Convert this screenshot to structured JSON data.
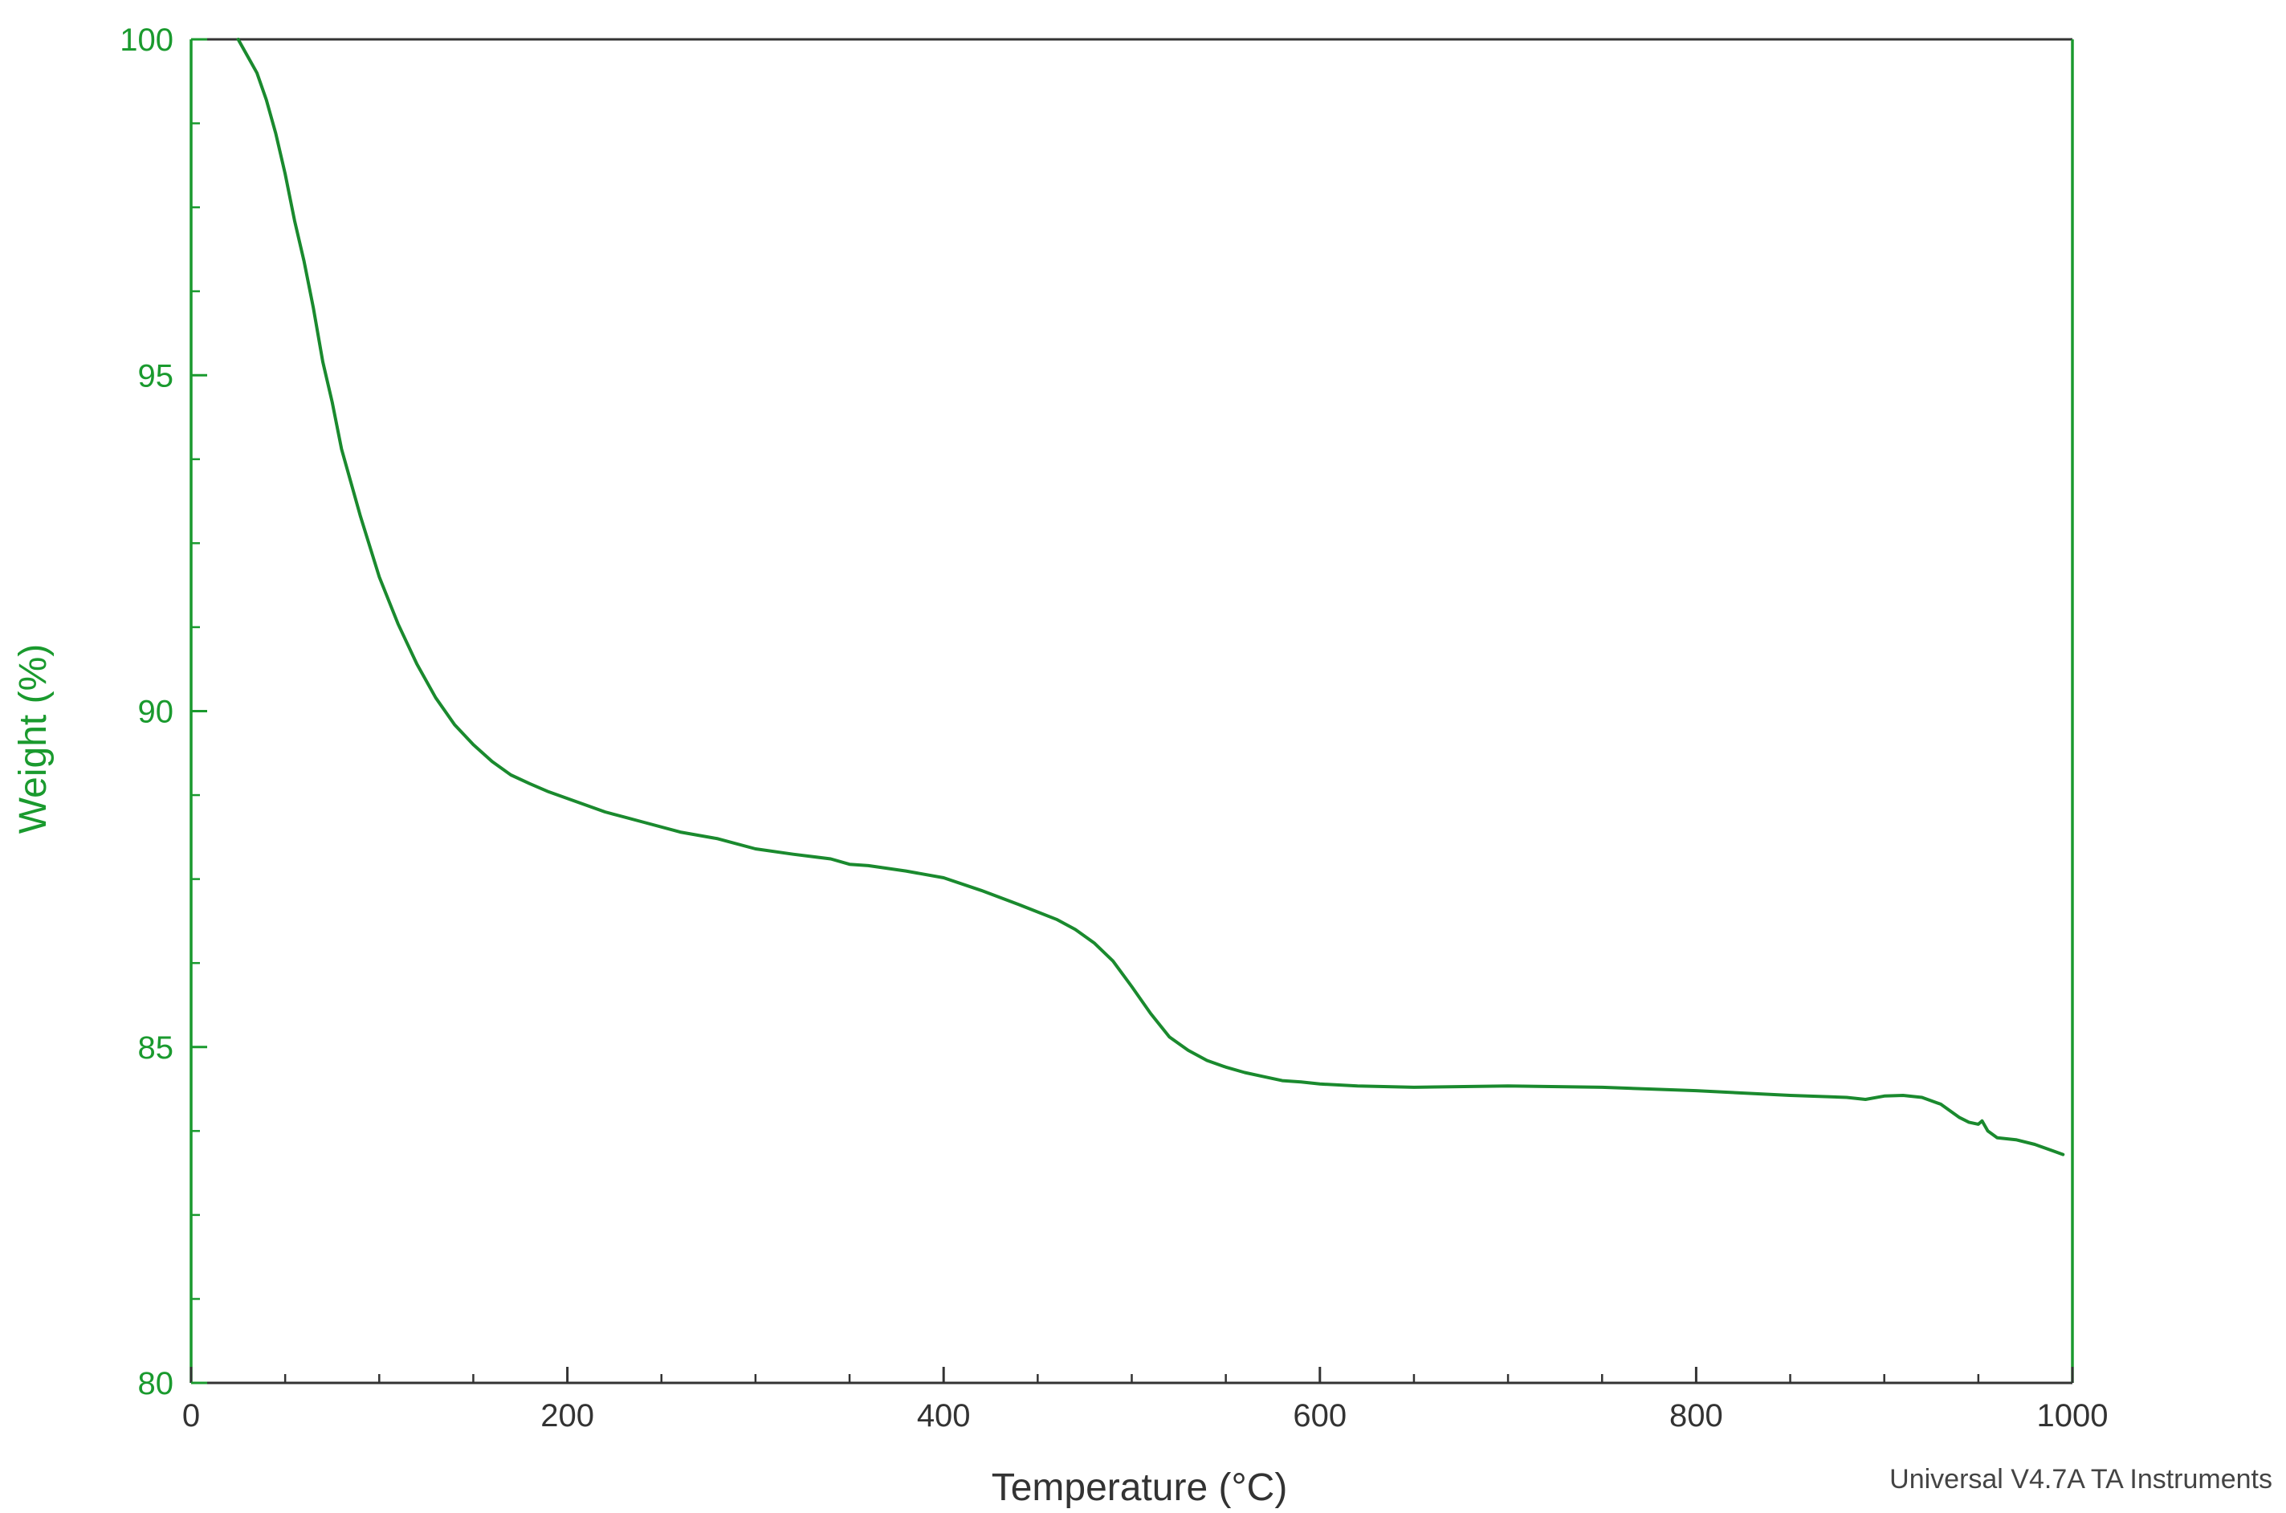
{
  "chart_data": {
    "type": "line",
    "title": "",
    "xlabel": "Temperature (°C)",
    "ylabel": "Weight (%)",
    "xlim": [
      0,
      1000
    ],
    "ylim": [
      80,
      100
    ],
    "x_ticks": [
      0,
      200,
      400,
      600,
      800,
      1000
    ],
    "y_ticks": [
      80,
      85,
      90,
      95,
      100
    ],
    "x_minor_step": 50,
    "y_minor_step": 1.25,
    "grid": false,
    "legend": "none",
    "series": [
      {
        "color": "#1a8a2e",
        "x": [
          25,
          30,
          35,
          40,
          45,
          50,
          55,
          60,
          65,
          70,
          75,
          80,
          90,
          100,
          110,
          120,
          130,
          140,
          150,
          160,
          170,
          180,
          190,
          200,
          220,
          240,
          260,
          280,
          300,
          320,
          340,
          350,
          360,
          380,
          400,
          420,
          440,
          460,
          470,
          480,
          490,
          500,
          510,
          520,
          530,
          540,
          550,
          560,
          570,
          580,
          590,
          600,
          620,
          650,
          700,
          750,
          800,
          850,
          880,
          890,
          900,
          910,
          920,
          930,
          935,
          940,
          945,
          950,
          952,
          955,
          960,
          970,
          980,
          990,
          995
        ],
        "y": [
          100.0,
          99.75,
          99.5,
          99.1,
          98.6,
          98.0,
          97.3,
          96.7,
          96.0,
          95.2,
          94.6,
          93.9,
          92.9,
          92.0,
          91.3,
          90.7,
          90.2,
          89.8,
          89.5,
          89.25,
          89.05,
          88.92,
          88.8,
          88.7,
          88.5,
          88.35,
          88.2,
          88.1,
          87.95,
          87.87,
          87.8,
          87.72,
          87.7,
          87.62,
          87.52,
          87.33,
          87.12,
          86.9,
          86.75,
          86.55,
          86.28,
          85.9,
          85.5,
          85.15,
          84.95,
          84.8,
          84.7,
          84.62,
          84.56,
          84.5,
          84.48,
          84.45,
          84.42,
          84.4,
          84.42,
          84.4,
          84.35,
          84.28,
          84.25,
          84.22,
          84.27,
          84.28,
          84.25,
          84.15,
          84.05,
          83.95,
          83.88,
          83.85,
          83.9,
          83.75,
          83.65,
          83.62,
          83.55,
          83.45,
          83.4
        ]
      }
    ],
    "annotation": "Universal V4.7A TA Instruments",
    "colors": {
      "left_axis": "#1a9a2e",
      "right_axis": "#1a9a2e",
      "x_axis": "#333333",
      "line": "#1a8a2e",
      "y_text": "#1a9a2e",
      "x_text": "#333333"
    }
  }
}
